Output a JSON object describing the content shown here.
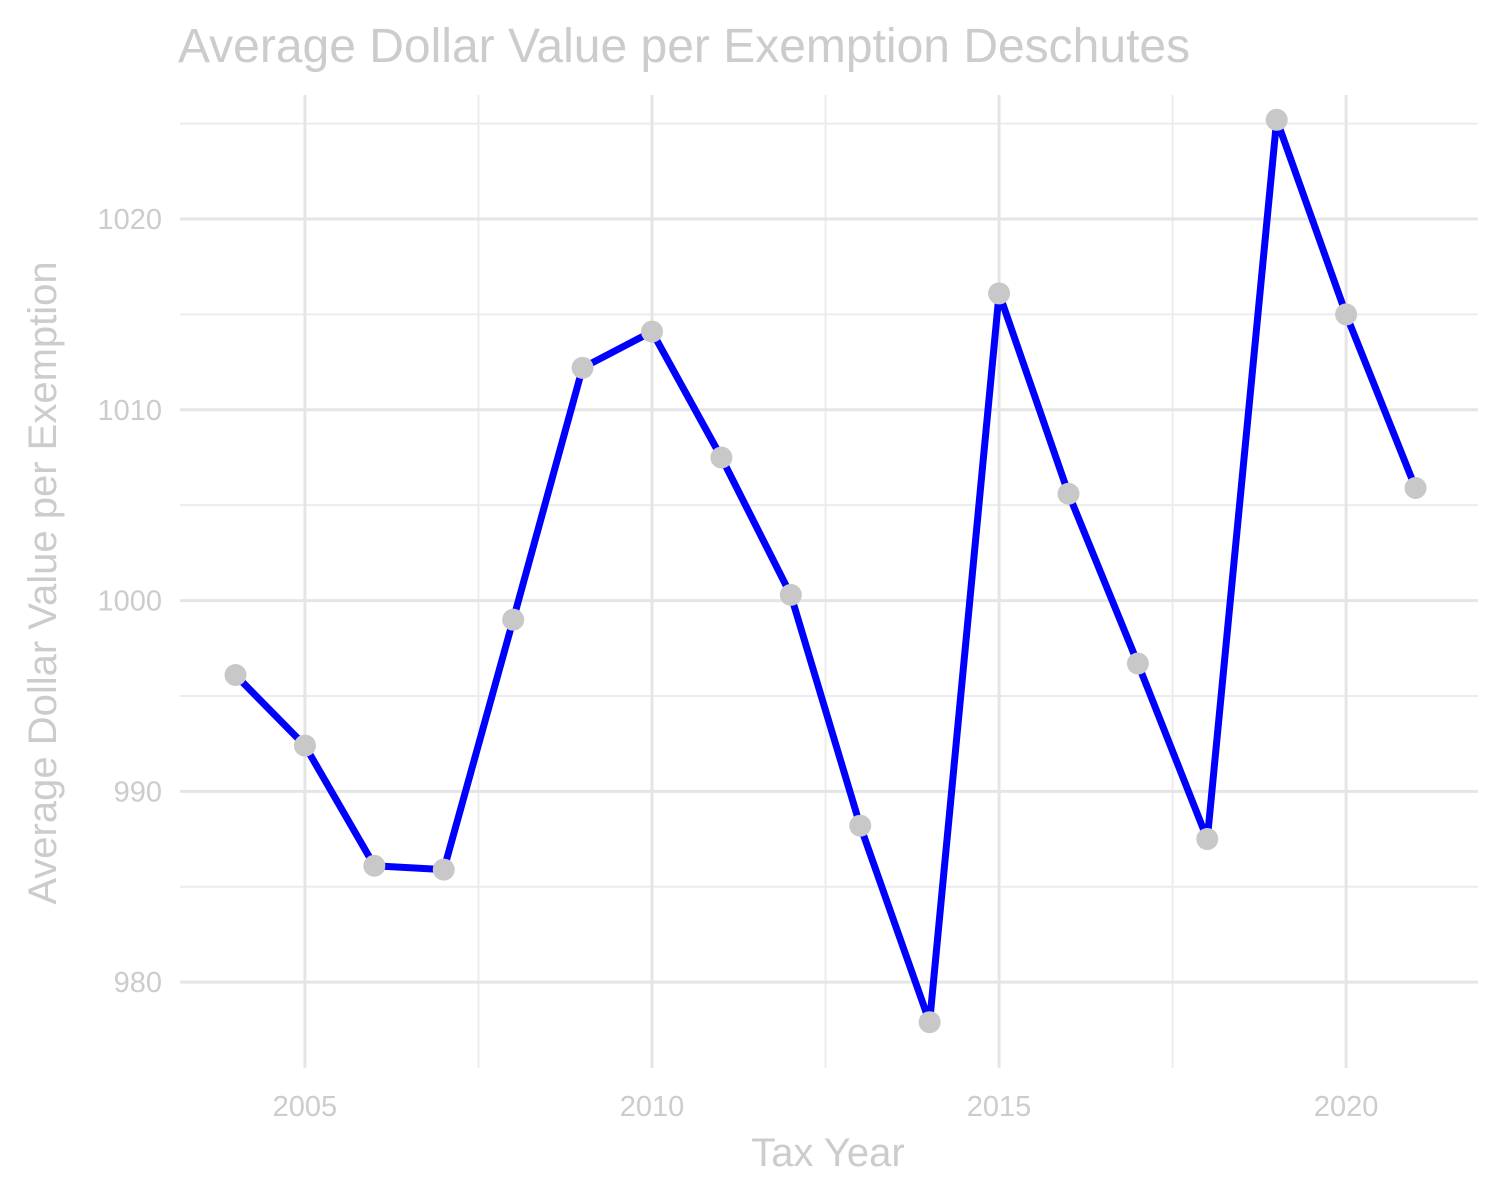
{
  "chart_data": {
    "type": "line",
    "title": "Average Dollar Value per Exemption Deschutes",
    "xlabel": "Tax Year",
    "ylabel": "Average Dollar Value per Exemption",
    "x_ticks": [
      "2005",
      "2010",
      "2015",
      "2020"
    ],
    "y_ticks": [
      "980",
      "990",
      "1000",
      "1010",
      "1020"
    ],
    "xlim": [
      2003.2,
      2021.9
    ],
    "ylim": [
      975.5,
      1026.5
    ],
    "grid": true,
    "series": [
      {
        "x": [
          2004,
          2005,
          2006,
          2007,
          2008,
          2009,
          2010,
          2011,
          2012,
          2013,
          2014,
          2015,
          2016,
          2017,
          2018,
          2019,
          2020,
          2021
        ],
        "values": [
          996.1,
          992.4,
          986.1,
          985.9,
          999.0,
          1012.2,
          1014.1,
          1007.5,
          1000.3,
          988.2,
          977.9,
          1016.1,
          1005.6,
          996.7,
          987.5,
          1025.2,
          1015.0,
          1005.9
        ]
      }
    ],
    "colors": {
      "line": "#0000ff",
      "points": "#c8c8c8",
      "text": "#cccccc",
      "grid": "#e5e5e5"
    }
  }
}
